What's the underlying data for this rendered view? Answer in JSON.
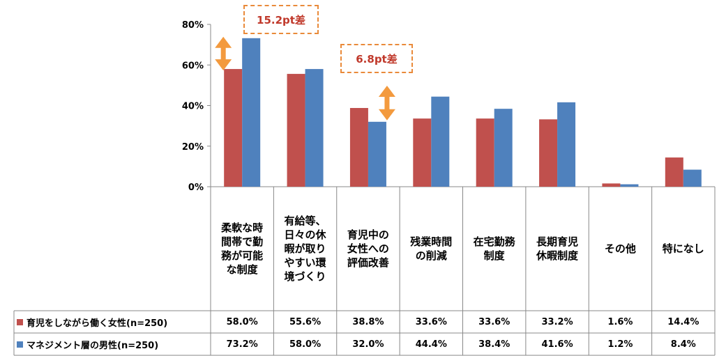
{
  "chart_data": {
    "type": "bar",
    "categories": [
      "柔軟な時間帯で勤務が可能な制度",
      "有給等、日々の休暇が取りやすい環境づくり",
      "育児中の女性への評価改善",
      "残業時間の削減",
      "在宅勤務制度",
      "長期育児休暇制度",
      "その他",
      "特になし"
    ],
    "series": [
      {
        "name": "育児をしながら働く女性(n=250)",
        "values": [
          58.0,
          55.6,
          38.8,
          33.6,
          33.6,
          33.2,
          1.6,
          14.4
        ],
        "labels": [
          "58.0%",
          "55.6%",
          "38.8%",
          "33.6%",
          "33.6%",
          "33.2%",
          "1.6%",
          "14.4%"
        ],
        "color": "#c0504d"
      },
      {
        "name": "マネジメント層の男性(n=250)",
        "values": [
          73.2,
          58.0,
          32.0,
          44.4,
          38.4,
          41.6,
          1.2,
          8.4
        ],
        "labels": [
          "73.2%",
          "58.0%",
          "32.0%",
          "44.4%",
          "38.4%",
          "41.6%",
          "1.2%",
          "8.4%"
        ],
        "color": "#4f81bd"
      }
    ],
    "yticks": [
      "0%",
      "20%",
      "40%",
      "60%",
      "80%"
    ],
    "ylim": [
      0,
      80
    ],
    "grid": false,
    "legend": "table-rows",
    "annotations": [
      {
        "text": "15.2pt差",
        "category_index": 0
      },
      {
        "text": "6.8pt差",
        "category_index": 2
      }
    ]
  }
}
